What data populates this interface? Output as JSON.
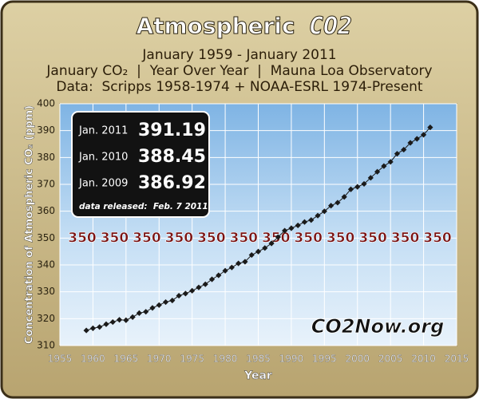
{
  "chart_data": {
    "type": "line",
    "title": "Atmospheric",
    "title_logo": "CO2",
    "subtitles": [
      "January 1959 - January 2011",
      "January CO₂  |  Year Over Year  |  Mauna Loa Observatory",
      "Data:  Scripps 1958-1974 + NOAA-ESRL 1974-Present"
    ],
    "xlabel": "Year",
    "ylabel": "Concentration of Atmospheric CO₂ (ppm)",
    "x": [
      1959,
      1960,
      1961,
      1962,
      1963,
      1964,
      1965,
      1966,
      1967,
      1968,
      1969,
      1970,
      1971,
      1972,
      1973,
      1974,
      1975,
      1976,
      1977,
      1978,
      1979,
      1980,
      1981,
      1982,
      1983,
      1984,
      1985,
      1986,
      1987,
      1988,
      1989,
      1990,
      1991,
      1992,
      1993,
      1994,
      1995,
      1996,
      1997,
      1998,
      1999,
      2000,
      2001,
      2002,
      2003,
      2004,
      2005,
      2006,
      2007,
      2008,
      2009,
      2010,
      2011
    ],
    "values": [
      315.62,
      316.43,
      316.89,
      317.94,
      318.74,
      319.57,
      319.44,
      320.58,
      322.06,
      322.57,
      324.0,
      325.06,
      326.17,
      326.77,
      328.54,
      329.35,
      330.4,
      331.63,
      332.81,
      334.66,
      336.14,
      337.84,
      339.06,
      340.57,
      341.19,
      343.7,
      344.97,
      346.29,
      348.02,
      350.38,
      352.76,
      353.66,
      354.72,
      355.98,
      356.7,
      358.36,
      359.96,
      362.05,
      363.18,
      365.32,
      368.15,
      369.07,
      370.17,
      372.43,
      374.68,
      376.79,
      378.37,
      381.38,
      382.9,
      385.44,
      386.92,
      388.45,
      391.19
    ],
    "color": "#1a1a1a",
    "xlim": [
      1955,
      2015
    ],
    "xticks": [
      1955,
      1960,
      1965,
      1970,
      1975,
      1980,
      1985,
      1990,
      1995,
      2000,
      2005,
      2010,
      2015
    ],
    "ylim": [
      310,
      400
    ],
    "yticks": [
      310,
      320,
      330,
      340,
      350,
      360,
      370,
      380,
      390,
      400
    ],
    "grid": true,
    "reference": {
      "value": 350,
      "label": "350"
    },
    "callout": {
      "labels": [
        "Jan. 2011",
        "Jan. 2010",
        "Jan. 2009"
      ],
      "note": "data released:  Feb. 7 2011"
    },
    "watermark": "CO2Now.org"
  }
}
